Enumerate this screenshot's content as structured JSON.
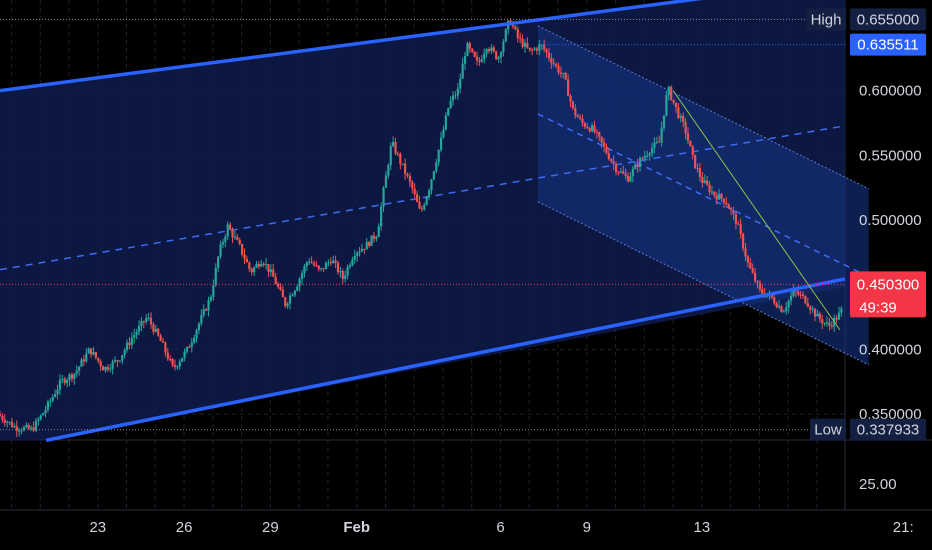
{
  "chart_data": {
    "type": "candlestick",
    "title": "",
    "y_axis": {
      "ticks": [
        "0.600000",
        "0.550000",
        "0.500000",
        "0.400000",
        "0.350000"
      ],
      "ylim": [
        0.33,
        0.67
      ],
      "scale": "linear"
    },
    "volume_pane": {
      "ticks": [
        "25.00"
      ]
    },
    "x_axis": {
      "ticks": [
        {
          "label": "23",
          "day": 23
        },
        {
          "label": "26",
          "day": 26
        },
        {
          "label": "29",
          "day": 29
        },
        {
          "label": "Feb",
          "day": 32
        },
        {
          "label": "6",
          "day": 37
        },
        {
          "label": "9",
          "day": 40
        },
        {
          "label": "13",
          "day": 44
        },
        {
          "label": "21:",
          "day": 51
        }
      ],
      "xlim": [
        19.6,
        52.0
      ]
    },
    "markers": {
      "high": {
        "label": "High",
        "value": "0.655000",
        "price": 0.655
      },
      "low": {
        "label": "Low",
        "value": "0.337933",
        "price": 0.337933
      },
      "range_top": {
        "value": "0.635511",
        "price": 0.635511
      },
      "last": {
        "value": "0.450300",
        "price": 0.4503,
        "countdown": "49:39"
      }
    },
    "price_path": [
      [
        19.6,
        0.35
      ],
      [
        20.2,
        0.34
      ],
      [
        20.8,
        0.338
      ],
      [
        21.3,
        0.355
      ],
      [
        21.8,
        0.375
      ],
      [
        22.3,
        0.382
      ],
      [
        22.8,
        0.4
      ],
      [
        23.3,
        0.385
      ],
      [
        23.8,
        0.392
      ],
      [
        24.3,
        0.41
      ],
      [
        24.8,
        0.425
      ],
      [
        25.3,
        0.405
      ],
      [
        25.7,
        0.385
      ],
      [
        26.2,
        0.4
      ],
      [
        26.6,
        0.42
      ],
      [
        27.0,
        0.44
      ],
      [
        27.3,
        0.475
      ],
      [
        27.6,
        0.495
      ],
      [
        28.0,
        0.48
      ],
      [
        28.4,
        0.46
      ],
      [
        28.8,
        0.47
      ],
      [
        29.2,
        0.455
      ],
      [
        29.6,
        0.435
      ],
      [
        30.0,
        0.45
      ],
      [
        30.4,
        0.47
      ],
      [
        30.8,
        0.46
      ],
      [
        31.2,
        0.47
      ],
      [
        31.6,
        0.455
      ],
      [
        32.0,
        0.475
      ],
      [
        32.4,
        0.48
      ],
      [
        32.8,
        0.49
      ],
      [
        33.0,
        0.52
      ],
      [
        33.3,
        0.56
      ],
      [
        33.6,
        0.545
      ],
      [
        34.0,
        0.525
      ],
      [
        34.3,
        0.505
      ],
      [
        34.6,
        0.525
      ],
      [
        35.0,
        0.56
      ],
      [
        35.3,
        0.59
      ],
      [
        35.6,
        0.6
      ],
      [
        35.9,
        0.635
      ],
      [
        36.3,
        0.62
      ],
      [
        36.6,
        0.635
      ],
      [
        37.0,
        0.625
      ],
      [
        37.4,
        0.655
      ],
      [
        37.7,
        0.64
      ],
      [
        38.1,
        0.63
      ],
      [
        38.5,
        0.635
      ],
      [
        38.9,
        0.622
      ],
      [
        39.3,
        0.61
      ],
      [
        39.6,
        0.585
      ],
      [
        39.9,
        0.575
      ],
      [
        40.3,
        0.57
      ],
      [
        40.7,
        0.555
      ],
      [
        41.1,
        0.54
      ],
      [
        41.5,
        0.532
      ],
      [
        41.9,
        0.545
      ],
      [
        42.3,
        0.555
      ],
      [
        42.6,
        0.56
      ],
      [
        42.9,
        0.602
      ],
      [
        43.2,
        0.585
      ],
      [
        43.5,
        0.57
      ],
      [
        43.8,
        0.545
      ],
      [
        44.1,
        0.53
      ],
      [
        44.5,
        0.52
      ],
      [
        44.9,
        0.515
      ],
      [
        45.3,
        0.498
      ],
      [
        45.7,
        0.465
      ],
      [
        46.1,
        0.445
      ],
      [
        46.5,
        0.44
      ],
      [
        46.9,
        0.43
      ],
      [
        47.3,
        0.445
      ],
      [
        47.7,
        0.438
      ],
      [
        48.1,
        0.425
      ],
      [
        48.5,
        0.418
      ],
      [
        48.9,
        0.428
      ],
      [
        49.3,
        0.45
      ],
      [
        49.5,
        0.4503
      ]
    ]
  }
}
